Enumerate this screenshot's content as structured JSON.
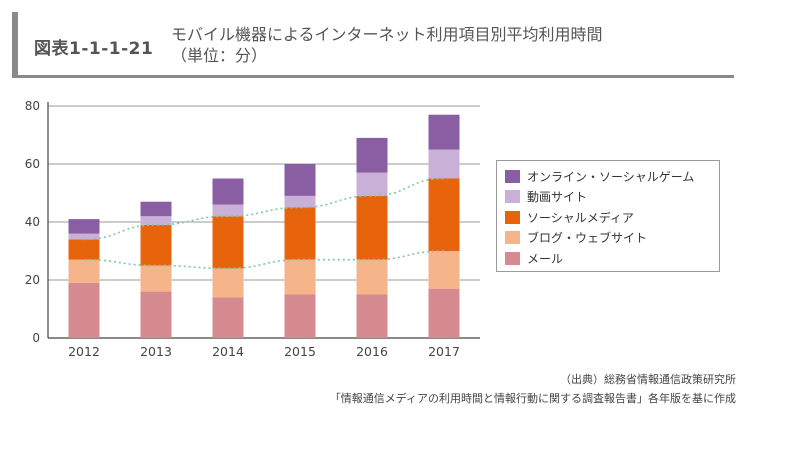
{
  "header": {
    "figure_number": "図表1-1-1-21",
    "title_line1": "モバイル機器によるインターネット利用項目別平均利用時間",
    "title_line2": "（単位：分）"
  },
  "chart_data": {
    "type": "bar",
    "stacked": true,
    "categories": [
      "2012",
      "2013",
      "2014",
      "2015",
      "2016",
      "2017"
    ],
    "series": [
      {
        "name": "メール",
        "color": "#d48a8f",
        "values": [
          19,
          16,
          14,
          15,
          15,
          17
        ]
      },
      {
        "name": "ブログ・ウェブサイト",
        "color": "#f6b48a",
        "values": [
          8,
          9,
          10,
          12,
          12,
          13
        ]
      },
      {
        "name": "ソーシャルメディア",
        "color": "#e8640c",
        "values": [
          7,
          14,
          18,
          18,
          22,
          25
        ]
      },
      {
        "name": "動画サイト",
        "color": "#c8b0d6",
        "values": [
          2,
          3,
          4,
          4,
          8,
          10
        ]
      },
      {
        "name": "オンライン・ソーシャルゲーム",
        "color": "#8a5ea3",
        "values": [
          5,
          5,
          9,
          11,
          12,
          12
        ]
      }
    ],
    "ylim": [
      0,
      80
    ],
    "yticks": [
      0,
      20,
      40,
      60,
      80
    ],
    "grid": true,
    "legend_position": "right",
    "legend_order": [
      "オンライン・ソーシャルゲーム",
      "動画サイト",
      "ソーシャルメディア",
      "ブログ・ウェブサイト",
      "メール"
    ],
    "trend_lines": [
      {
        "after_series": "ブログ・ウェブサイト",
        "style": "dotted",
        "color": "#7bc9a6"
      },
      {
        "after_series": "ソーシャルメディア",
        "style": "dotted",
        "color": "#7bc9a6"
      }
    ]
  },
  "source": {
    "line1": "（出典）総務省情報通信政策研究所",
    "line2": "「情報通信メディアの利用時間と情報行動に関する調査報告書」各年版を基に作成"
  }
}
